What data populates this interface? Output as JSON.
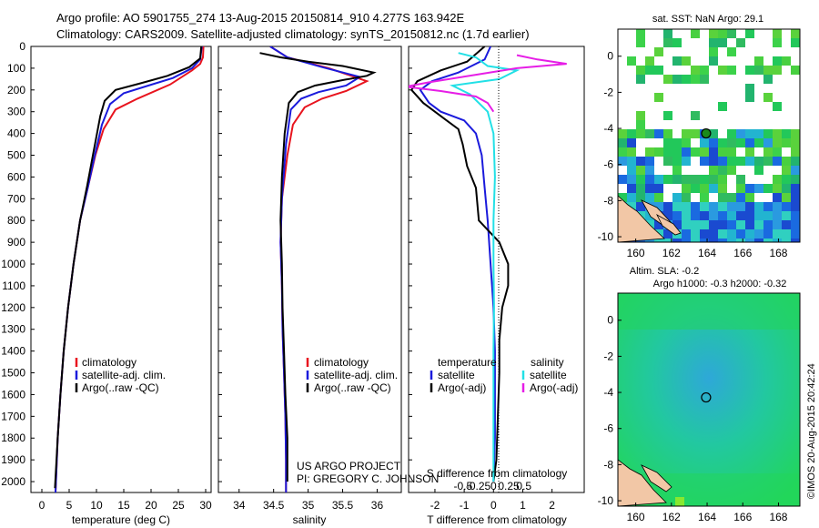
{
  "header": {
    "line1": "Argo profile: AO 5901755_274 13-Aug-2015 20150814_910 4.277S 163.942E",
    "line2": "Climatology: CARS2009. Satellite-adjusted climatology: synTS_20150812.nc (1.7d earlier)"
  },
  "depth_ticks": [
    "0",
    "100",
    "200",
    "300",
    "400",
    "500",
    "600",
    "700",
    "800",
    "900",
    "1000",
    "1100",
    "1200",
    "1300",
    "1400",
    "1500",
    "1600",
    "1700",
    "1800",
    "1900",
    "2000"
  ],
  "credits": {
    "project": "US ARGO PROJECT",
    "pi": "PI: GREGORY C. JOHNSON",
    "imos": "©IMOS 20-Aug-2015 20:42:24"
  },
  "colors": {
    "climatology": "#e8141e",
    "satellite": "#1a1adc",
    "argo": "#000000",
    "sat_salinity": "#22e0e6",
    "argo_salinity": "#e61ee6"
  },
  "chart_data": [
    {
      "type": "line",
      "id": "temperature",
      "xlabel": "temperature (deg C)",
      "xlim": [
        -2,
        31
      ],
      "xticks": [
        "0",
        "5",
        "10",
        "15",
        "20",
        "25",
        "30"
      ],
      "ylim": [
        2050,
        0
      ],
      "legend": [
        "climatology",
        "satellite-adj. clim.",
        "Argo(..raw -QC)"
      ],
      "series": [
        {
          "name": "climatology",
          "color": "red",
          "points": [
            [
              29.6,
              0
            ],
            [
              29.5,
              50
            ],
            [
              29.0,
              80
            ],
            [
              27.5,
              110
            ],
            [
              23.5,
              175
            ],
            [
              17.5,
              240
            ],
            [
              13.5,
              290
            ],
            [
              11.3,
              380
            ],
            [
              9.8,
              500
            ],
            [
              8.4,
              650
            ],
            [
              7.0,
              800
            ],
            [
              5.8,
              1000
            ],
            [
              4.8,
              1200
            ],
            [
              4.0,
              1400
            ],
            [
              3.4,
              1600
            ],
            [
              2.9,
              1800
            ],
            [
              2.5,
              2050
            ]
          ]
        },
        {
          "name": "satellite-adj. clim.",
          "color": "blue",
          "points": [
            [
              29.3,
              0
            ],
            [
              29.0,
              60
            ],
            [
              27.5,
              100
            ],
            [
              24.0,
              145
            ],
            [
              19.5,
              180
            ],
            [
              15.0,
              215
            ],
            [
              12.5,
              265
            ],
            [
              11.0,
              360
            ],
            [
              9.7,
              500
            ],
            [
              8.4,
              650
            ],
            [
              7.0,
              800
            ],
            [
              5.8,
              1000
            ],
            [
              4.8,
              1200
            ],
            [
              4.0,
              1400
            ],
            [
              3.4,
              1600
            ],
            [
              2.9,
              1800
            ],
            [
              2.5,
              2050
            ]
          ]
        },
        {
          "name": "Argo(..raw -QC)",
          "color": "black",
          "points": [
            [
              29.2,
              0
            ],
            [
              29.0,
              55
            ],
            [
              27.0,
              95
            ],
            [
              23.0,
              135
            ],
            [
              18.0,
              170
            ],
            [
              13.5,
              200
            ],
            [
              11.5,
              250
            ],
            [
              10.7,
              320
            ],
            [
              9.5,
              480
            ],
            [
              8.3,
              640
            ],
            [
              7.0,
              800
            ],
            [
              5.8,
              1000
            ],
            [
              4.8,
              1200
            ],
            [
              4.0,
              1400
            ],
            [
              3.4,
              1600
            ],
            [
              2.9,
              1800
            ],
            [
              2.4,
              2030
            ]
          ]
        }
      ]
    },
    {
      "type": "line",
      "id": "salinity",
      "xlabel": "salinity",
      "xlim": [
        33.7,
        36.35
      ],
      "xticks": [
        "34",
        "34.5",
        "35",
        "35.5",
        "36"
      ],
      "ylim": [
        2050,
        0
      ],
      "legend": [
        "climatology",
        "satellite-adj. clim.",
        "Argo(..raw -QC)"
      ],
      "series": [
        {
          "name": "climatology",
          "color": "red",
          "points": [
            [
              34.45,
              0
            ],
            [
              34.7,
              50
            ],
            [
              35.3,
              100
            ],
            [
              35.85,
              160
            ],
            [
              35.55,
              205
            ],
            [
              35.2,
              240
            ],
            [
              34.95,
              280
            ],
            [
              34.78,
              360
            ],
            [
              34.7,
              500
            ],
            [
              34.62,
              700
            ],
            [
              34.6,
              900
            ],
            [
              34.62,
              1100
            ],
            [
              34.63,
              1300
            ],
            [
              34.65,
              1500
            ],
            [
              34.67,
              1700
            ],
            [
              34.68,
              1900
            ],
            [
              34.68,
              2050
            ]
          ]
        },
        {
          "name": "satellite-adj. clim.",
          "color": "blue",
          "points": [
            [
              34.45,
              0
            ],
            [
              34.7,
              50
            ],
            [
              35.2,
              95
            ],
            [
              35.75,
              140
            ],
            [
              35.55,
              180
            ],
            [
              35.15,
              210
            ],
            [
              34.9,
              240
            ],
            [
              34.75,
              290
            ],
            [
              34.68,
              450
            ],
            [
              34.62,
              700
            ],
            [
              34.6,
              900
            ],
            [
              34.62,
              1100
            ],
            [
              34.63,
              1300
            ],
            [
              34.65,
              1500
            ],
            [
              34.67,
              1700
            ],
            [
              34.68,
              1900
            ],
            [
              34.68,
              2050
            ]
          ]
        },
        {
          "name": "Argo(..raw -QC)",
          "color": "black",
          "points": [
            [
              34.3,
              30
            ],
            [
              34.6,
              50
            ],
            [
              35.0,
              70
            ],
            [
              35.5,
              90
            ],
            [
              35.95,
              120
            ],
            [
              35.85,
              135
            ],
            [
              35.5,
              155
            ],
            [
              35.1,
              180
            ],
            [
              34.85,
              210
            ],
            [
              34.72,
              260
            ],
            [
              34.66,
              400
            ],
            [
              34.62,
              600
            ],
            [
              34.6,
              800
            ],
            [
              34.62,
              1000
            ],
            [
              34.63,
              1200
            ],
            [
              34.65,
              1400
            ],
            [
              34.67,
              1600
            ],
            [
              34.7,
              1800
            ],
            [
              34.7,
              2000
            ]
          ]
        }
      ]
    },
    {
      "type": "line",
      "id": "difference",
      "xlabel": "T difference from climatology",
      "xlabel2": "S difference from climatology",
      "xlim": [
        -2.9,
        3.1
      ],
      "xticks": [
        "-2",
        "-1",
        "0",
        "1",
        "2"
      ],
      "xticks2": [
        "-0.5",
        "-0.25",
        "0",
        "0.25",
        "0.5"
      ],
      "ylim": [
        2050,
        0
      ],
      "legend_titles": [
        "temperature",
        "salinity"
      ],
      "legend": [
        "satellite",
        "Argo(-adj)",
        "satellite",
        "Argo(-adj)"
      ],
      "series": [
        {
          "name": "temperature satellite",
          "color": "blue",
          "points": [
            [
              -0.1,
              0
            ],
            [
              -0.3,
              60
            ],
            [
              -1.2,
              120
            ],
            [
              -2.1,
              160
            ],
            [
              -2.5,
              200
            ],
            [
              -2.2,
              260
            ],
            [
              -1.8,
              300
            ],
            [
              -1.0,
              340
            ],
            [
              -0.6,
              400
            ],
            [
              -0.4,
              500
            ],
            [
              -0.3,
              650
            ],
            [
              -0.2,
              800
            ],
            [
              -0.1,
              1000
            ],
            [
              0.0,
              1200
            ],
            [
              0.05,
              1400
            ],
            [
              0.05,
              1600
            ],
            [
              0.05,
              1800
            ],
            [
              0.0,
              2000
            ]
          ]
        },
        {
          "name": "temperature Argo(-adj)",
          "color": "black",
          "points": [
            [
              -0.3,
              0
            ],
            [
              -0.9,
              70
            ],
            [
              -1.8,
              110
            ],
            [
              -2.6,
              160
            ],
            [
              -2.8,
              200
            ],
            [
              -2.4,
              260
            ],
            [
              -1.7,
              330
            ],
            [
              -1.2,
              380
            ],
            [
              -1.05,
              450
            ],
            [
              -0.9,
              550
            ],
            [
              -0.6,
              650
            ],
            [
              -0.5,
              800
            ],
            [
              0.2,
              900
            ],
            [
              0.5,
              1000
            ],
            [
              0.5,
              1100
            ],
            [
              0.3,
              1200
            ],
            [
              0.2,
              1350
            ],
            [
              0.2,
              1500
            ],
            [
              0.15,
              1700
            ],
            [
              0.1,
              1900
            ],
            [
              0.0,
              2000
            ]
          ]
        },
        {
          "name": "salinity satellite",
          "color": "cyan",
          "points": [
            [
              -1.2,
              30
            ],
            [
              -0.6,
              50
            ],
            [
              -0.2,
              90
            ],
            [
              0.8,
              110
            ],
            [
              0.2,
              150
            ],
            [
              -1.4,
              180
            ],
            [
              -0.8,
              220
            ],
            [
              -0.2,
              300
            ],
            [
              0.0,
              400
            ],
            [
              0.05,
              600
            ],
            [
              0.0,
              800
            ],
            [
              0.0,
              1000
            ],
            [
              0.02,
              1200
            ],
            [
              0.0,
              1400
            ],
            [
              0.0,
              1600
            ],
            [
              0.0,
              1800
            ],
            [
              0.0,
              2000
            ]
          ]
        },
        {
          "name": "salinity Argo(-adj)",
          "color": "magenta",
          "points": [
            [
              0.8,
              40
            ],
            [
              1.5,
              60
            ],
            [
              2.5,
              80
            ],
            [
              0.8,
              100
            ],
            [
              -0.6,
              130
            ],
            [
              -2.2,
              165
            ],
            [
              -3.0,
              185
            ],
            [
              -1.8,
              205
            ],
            [
              -0.6,
              230
            ],
            [
              -0.2,
              260
            ],
            [
              0.0,
              300
            ]
          ]
        }
      ]
    },
    {
      "type": "heatmap",
      "id": "sst_map",
      "title": "sat. SST: NaN Argo: 29.1",
      "xticks": [
        "160",
        "162",
        "164",
        "166",
        "168"
      ],
      "yticks": [
        "0",
        "-2",
        "-4",
        "-6",
        "-8",
        "-10"
      ],
      "xlim": [
        159,
        169.2
      ],
      "ylim": [
        -10.3,
        1.5
      ],
      "marker": [
        163.942,
        -4.277
      ]
    },
    {
      "type": "heatmap",
      "id": "sla_map",
      "title": "Altim. SLA: -0.2",
      "subtitle": "Argo h1000: -0.3 h2000: -0.32",
      "xticks": [
        "160",
        "162",
        "164",
        "166",
        "168"
      ],
      "yticks": [
        "0",
        "-2",
        "-4",
        "-6",
        "-8",
        "-10"
      ],
      "xlim": [
        159,
        169.2
      ],
      "ylim": [
        -10.3,
        1.5
      ],
      "marker": [
        163.942,
        -4.277
      ]
    }
  ]
}
